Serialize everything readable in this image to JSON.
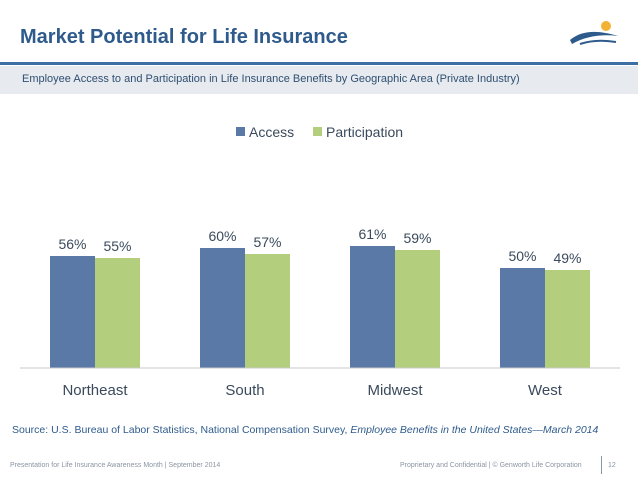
{
  "slide": {
    "title": "Market Potential for Life Insurance",
    "subtitle": "Employee Access to and Participation in Life Insurance Benefits by Geographic Area (Private Industry)"
  },
  "source": {
    "prefix": "Source: U.S. Bureau of Labor Statistics, National Compensation Survey, ",
    "title_italic": "Employee Benefits in the United States—March 2014"
  },
  "footer": {
    "left": "Presentation for Life Insurance Awareness Month | September 2014",
    "right": "Proprietary and Confidential   |   © Genworth Life Corporation",
    "page": "12"
  },
  "colors": {
    "access": "#5b79a6",
    "participation": "#b3cf7d",
    "brand": "#2f5b8c"
  },
  "chart_data": {
    "type": "bar",
    "categories": [
      "Northeast",
      "South",
      "Midwest",
      "West"
    ],
    "series": [
      {
        "name": "Access",
        "values": [
          56,
          60,
          61,
          50
        ],
        "labels": [
          "56%",
          "60%",
          "61%",
          "50%"
        ]
      },
      {
        "name": "Participation",
        "values": [
          55,
          57,
          59,
          49
        ],
        "labels": [
          "55%",
          "57%",
          "59%",
          "49%"
        ]
      }
    ],
    "ylim": [
      0,
      100
    ],
    "legend_position": "top-center",
    "grid": false
  }
}
